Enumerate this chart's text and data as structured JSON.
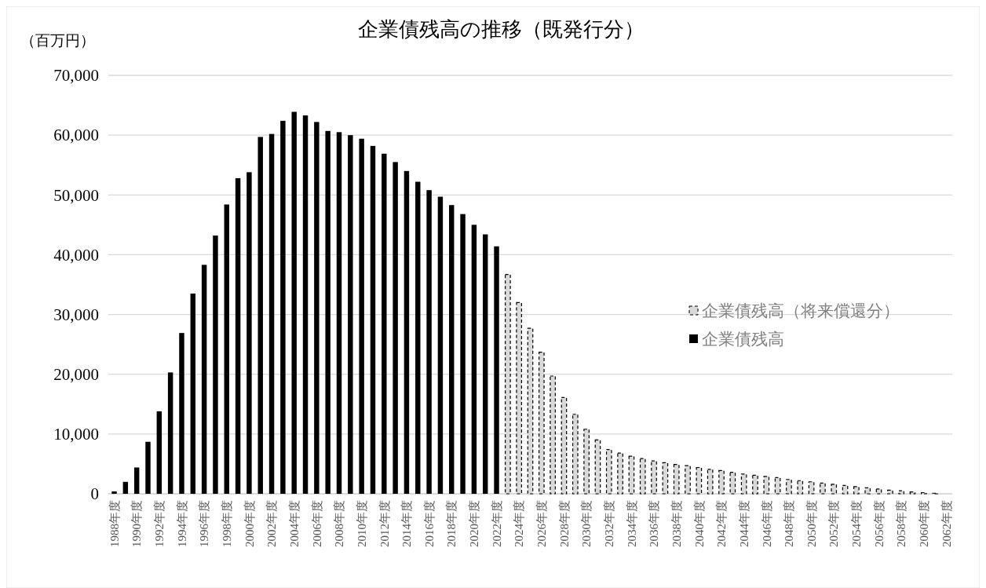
{
  "chart_data": {
    "type": "bar",
    "title": "企業債残高の推移（既発行分）",
    "ylabel": "（百万円）",
    "categories": [
      "1988年度",
      null,
      "1990年度",
      null,
      "1992年度",
      null,
      "1994年度",
      null,
      "1996年度",
      null,
      "1998年度",
      null,
      "2000年度",
      null,
      "2002年度",
      null,
      "2004年度",
      null,
      "2006年度",
      null,
      "2008年度",
      null,
      "2010年度",
      null,
      "2012年度",
      null,
      "2014年度",
      null,
      "2016年度",
      null,
      "2018年度",
      null,
      "2020年度",
      null,
      "2022年度",
      null,
      "2024年度",
      null,
      "2026年度",
      null,
      "2028年度",
      null,
      "2030年度",
      null,
      "2032年度",
      null,
      "2034年度",
      null,
      "2036年度",
      null,
      "2038年度",
      null,
      "2040年度",
      null,
      "2042年度",
      null,
      "2044年度",
      null,
      "2046年度",
      null,
      "2048年度",
      null,
      "2050年度",
      null,
      "2052年度",
      null,
      "2054年度",
      null,
      "2056年度",
      null,
      "2058年度",
      null,
      "2060年度",
      null,
      "2062年度"
    ],
    "series": [
      {
        "name": "企業債残高（将来償還分）",
        "color": "#d9d9d9",
        "line_style": "dashed",
        "values": [
          null,
          null,
          null,
          null,
          null,
          null,
          null,
          null,
          null,
          null,
          null,
          null,
          null,
          null,
          null,
          null,
          null,
          null,
          null,
          null,
          null,
          null,
          null,
          null,
          null,
          null,
          null,
          null,
          null,
          null,
          null,
          null,
          null,
          null,
          null,
          36700,
          32000,
          27700,
          23700,
          19700,
          16100,
          13300,
          10800,
          9000,
          7400,
          6800,
          6300,
          5900,
          5500,
          5200,
          4900,
          4700,
          4400,
          4100,
          3900,
          3600,
          3300,
          3100,
          2900,
          2700,
          2400,
          2200,
          2000,
          1800,
          1600,
          1400,
          1200,
          1000,
          800,
          600,
          500,
          300,
          200,
          100,
          null
        ]
      },
      {
        "name": "企業債残高",
        "color": "#000000",
        "values": [
          400,
          2000,
          4400,
          8700,
          13800,
          20300,
          26900,
          33500,
          38300,
          43200,
          48400,
          52800,
          53800,
          59700,
          60200,
          62400,
          63900,
          63300,
          62200,
          60700,
          60500,
          60000,
          59400,
          58200,
          56900,
          55500,
          54000,
          52200,
          50800,
          49700,
          48300,
          46800,
          45000,
          43400,
          41400,
          null,
          null,
          null,
          null,
          null,
          null,
          null,
          null,
          null,
          null,
          null,
          null,
          null,
          null,
          null,
          null,
          null,
          null,
          null,
          null,
          null,
          null,
          null,
          null,
          null,
          null,
          null,
          null,
          null,
          null,
          null,
          null,
          null,
          null,
          null,
          null,
          null,
          null,
          null,
          null
        ]
      }
    ],
    "ylim": [
      0,
      70000
    ],
    "yticks": [
      0,
      {
        "value": 10000,
        "label": "10,000"
      },
      {
        "value": 20000,
        "label": "20,000"
      },
      {
        "value": 30000,
        "label": "30,000"
      },
      {
        "value": 40000,
        "label": "40,000"
      },
      {
        "value": 50000,
        "label": "50,000"
      },
      {
        "value": 60000,
        "label": "60,000"
      },
      {
        "value": 70000,
        "label": "70,000"
      }
    ],
    "grid": "y",
    "legend": "right"
  }
}
